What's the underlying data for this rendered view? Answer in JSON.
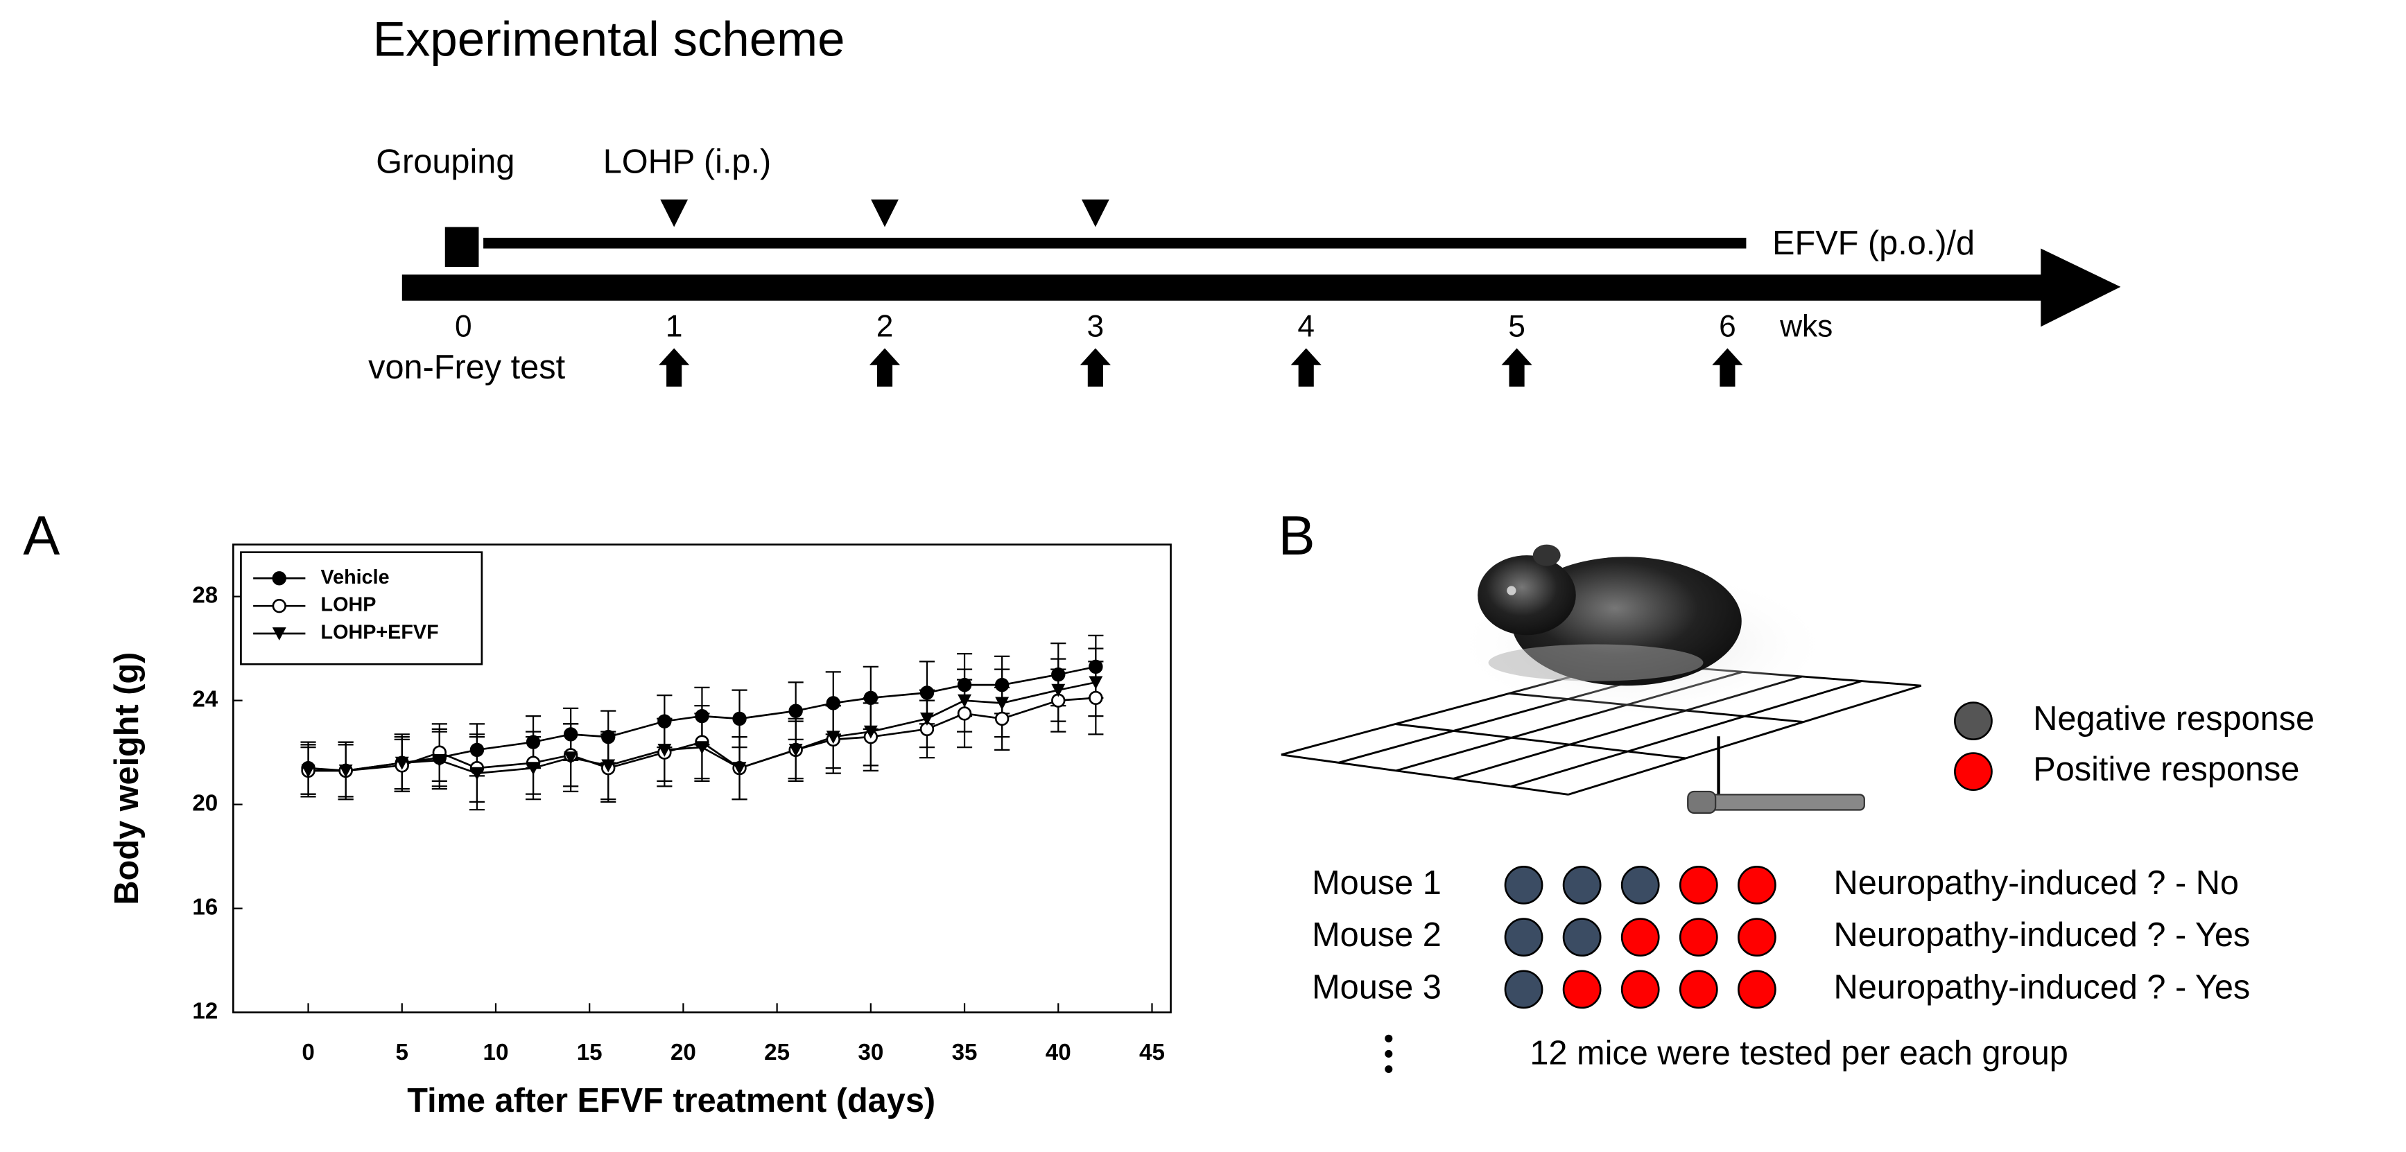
{
  "scheme": {
    "title": "Experimental scheme",
    "grouping": "Grouping",
    "injection": "LOHP (i.p.)",
    "treatment": "EFVF (p.o.)/d",
    "weeks": [
      "0",
      "1",
      "2",
      "3",
      "4",
      "5",
      "6"
    ],
    "unit": "wks",
    "test": "von-Frey test"
  },
  "chart_data": {
    "type": "line",
    "panel": "A",
    "xlabel": "Time after EFVF treatment (days)",
    "ylabel": "Body weight (g)",
    "x": [
      0,
      2,
      5,
      7,
      9,
      12,
      14,
      16,
      19,
      21,
      23,
      26,
      28,
      30,
      33,
      35,
      37,
      40,
      42
    ],
    "series": [
      {
        "name": "Vehicle",
        "color": "#000000",
        "marker": "filled-circle",
        "values": [
          21.4,
          21.3,
          21.6,
          21.8,
          22.1,
          22.4,
          22.7,
          22.6,
          23.2,
          23.4,
          23.3,
          23.6,
          23.9,
          24.1,
          24.3,
          24.6,
          24.6,
          25.0,
          25.3
        ],
        "errors": [
          1.0,
          1.1,
          1.1,
          1.1,
          1.0,
          1.0,
          1.0,
          1.0,
          1.0,
          1.1,
          1.1,
          1.1,
          1.2,
          1.2,
          1.2,
          1.2,
          1.1,
          1.2,
          1.2
        ]
      },
      {
        "name": "LOHP",
        "color": "#000000",
        "marker": "open-circle",
        "values": [
          21.3,
          21.3,
          21.5,
          22.0,
          21.4,
          21.6,
          21.9,
          21.4,
          22.0,
          22.4,
          21.4,
          22.1,
          22.5,
          22.6,
          22.9,
          23.5,
          23.3,
          24.0,
          24.1
        ],
        "errors": [
          0.9,
          1.1,
          1.0,
          1.1,
          1.3,
          1.2,
          1.2,
          1.3,
          1.3,
          1.4,
          1.2,
          1.1,
          1.3,
          1.3,
          1.1,
          1.3,
          1.2,
          1.2,
          1.4
        ]
      },
      {
        "name": "LOHP+EFVF",
        "color": "#000000",
        "marker": "filled-triangle-down",
        "values": [
          21.3,
          21.3,
          21.6,
          21.7,
          21.2,
          21.4,
          21.8,
          21.5,
          22.1,
          22.2,
          21.4,
          22.1,
          22.6,
          22.8,
          23.3,
          24.0,
          23.9,
          24.4,
          24.7
        ],
        "errors": [
          1.0,
          1.0,
          1.0,
          1.1,
          1.4,
          1.2,
          1.3,
          1.3,
          1.2,
          1.3,
          1.2,
          1.2,
          1.2,
          1.3,
          1.1,
          1.2,
          1.3,
          1.2,
          1.3
        ]
      }
    ],
    "xlim": [
      -4,
      46
    ],
    "ylim": [
      12,
      30
    ],
    "xticks": [
      0,
      5,
      10,
      15,
      20,
      25,
      30,
      35,
      40,
      45
    ],
    "yticks": [
      12,
      16,
      20,
      24,
      28
    ],
    "legend": "upper left",
    "grid": false
  },
  "panel_b": {
    "label": "B",
    "legend": [
      {
        "name": "Negative response",
        "color": "#555555"
      },
      {
        "name": "Positive response",
        "color": "#ff0000"
      }
    ],
    "negative_color": "#3b4c63",
    "positive_color": "#ff0000",
    "rows": [
      {
        "name": "Mouse 1",
        "responses": [
          false,
          false,
          false,
          true,
          true
        ],
        "result": "Neuropathy-induced ? - No"
      },
      {
        "name": "Mouse 2",
        "responses": [
          false,
          false,
          true,
          true,
          true
        ],
        "result": "Neuropathy-induced ? - Yes"
      },
      {
        "name": "Mouse 3",
        "responses": [
          false,
          true,
          true,
          true,
          true
        ],
        "result": "Neuropathy-induced ? - Yes"
      }
    ],
    "note": "12 mice were tested per each group"
  }
}
